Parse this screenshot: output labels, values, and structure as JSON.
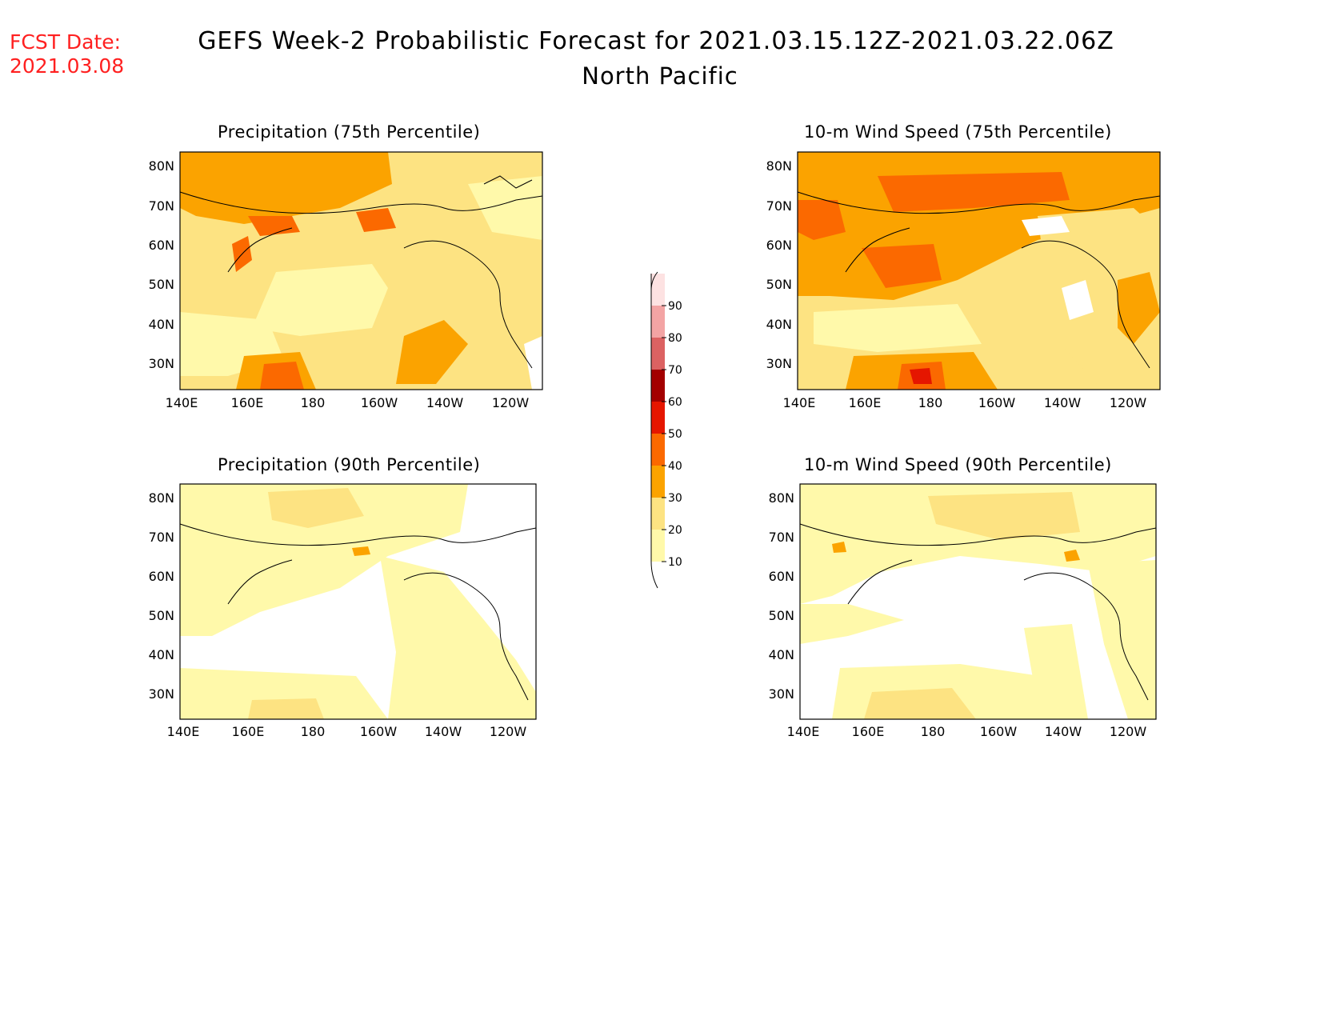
{
  "header": {
    "fcst_label": "FCST Date:",
    "fcst_date": "2021.03.08",
    "title": "GEFS Week-2 Probabilistic Forecast for 2021.03.15.12Z-2021.03.22.06Z",
    "subtitle": "North Pacific"
  },
  "panels": [
    {
      "title": "Precipitation (75th Percentile)"
    },
    {
      "title": "10-m Wind Speed (75th Percentile)"
    },
    {
      "title": "Precipitation (90th Percentile)"
    },
    {
      "title": "10-m Wind Speed (90th Percentile)"
    }
  ],
  "axes": {
    "lat_labels": [
      "80N",
      "70N",
      "60N",
      "50N",
      "40N",
      "30N"
    ],
    "lon_labels": [
      "140E",
      "160E",
      "180",
      "160W",
      "140W",
      "120W"
    ]
  },
  "colorbar": {
    "levels": [
      "10",
      "20",
      "30",
      "40",
      "50",
      "60",
      "70",
      "80",
      "90"
    ],
    "colors": [
      "#fff9aa",
      "#fde382",
      "#fba300",
      "#fb6900",
      "#e51600",
      "#a30000",
      "#dc6262",
      "#f3a4a4",
      "#fde2e2"
    ]
  }
}
